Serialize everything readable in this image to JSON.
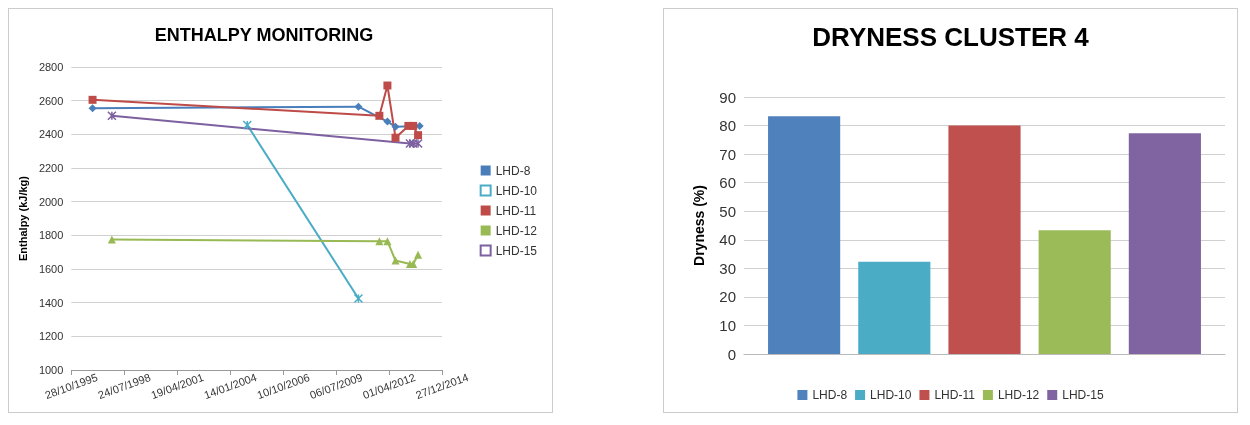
{
  "chart_data": [
    {
      "type": "line",
      "title": "ENTHALPY MONITORING",
      "ylabel": "Enthalpy (kJ/kg)",
      "xlim": [
        "1995-10-28",
        "2014-12-27"
      ],
      "xticks": [
        {
          "value": "1995-10-28",
          "label": "28/10/1995"
        },
        {
          "value": "1998-07-24",
          "label": "24/07/1998"
        },
        {
          "value": "2001-04-19",
          "label": "19/04/2001"
        },
        {
          "value": "2004-01-14",
          "label": "14/01/2004"
        },
        {
          "value": "2006-10-10",
          "label": "10/10/2006"
        },
        {
          "value": "2009-07-06",
          "label": "06/07/2009"
        },
        {
          "value": "2012-04-01",
          "label": "01/04/2012"
        },
        {
          "value": "2014-12-27",
          "label": "27/12/2014"
        }
      ],
      "ylim": [
        1000,
        2800
      ],
      "yticks": [
        1000,
        1200,
        1400,
        1600,
        1800,
        2000,
        2200,
        2400,
        2600,
        2800
      ],
      "grid": "y",
      "legend": "right",
      "line_style": "solid",
      "series": [
        {
          "name": "LHD-8",
          "color": "#4a7ebb",
          "marker": "diamond",
          "x": [
            "1996-12",
            "2010-09",
            "2012-03",
            "2012-08",
            "2013-11"
          ],
          "values": [
            2555,
            2564,
            2476,
            2445,
            2450
          ]
        },
        {
          "name": "LHD-10",
          "color": "#4bacc6",
          "marker": "cross",
          "x": [
            "2004-12",
            "2010-09"
          ],
          "values": [
            2455,
            1425
          ]
        },
        {
          "name": "LHD-11",
          "color": "#be4b48",
          "marker": "square",
          "x": [
            "1996-12",
            "2011-10",
            "2012-03",
            "2012-08",
            "2013-04",
            "2013-07",
            "2013-10"
          ],
          "values": [
            2605,
            2510,
            2690,
            2380,
            2450,
            2450,
            2395
          ]
        },
        {
          "name": "LHD-12",
          "color": "#98b954",
          "marker": "triangle",
          "x": [
            "1997-12",
            "2011-10",
            "2012-03",
            "2012-08",
            "2013-05",
            "2013-07",
            "2013-10"
          ],
          "values": [
            1775,
            1765,
            1765,
            1650,
            1630,
            1630,
            1685
          ]
        },
        {
          "name": "LHD-15",
          "color": "#7d60a0",
          "marker": "cross",
          "x": [
            "1997-12",
            "2013-05",
            "2013-07",
            "2013-10"
          ],
          "values": [
            2510,
            2345,
            2345,
            2345
          ]
        }
      ]
    },
    {
      "type": "bar",
      "title": "DRYNESS CLUSTER 4",
      "ylabel": "Dryness (%)",
      "categories": [
        null
      ],
      "ylim": [
        0,
        90
      ],
      "yticks": [
        0,
        10,
        20,
        30,
        40,
        50,
        60,
        70,
        80,
        90
      ],
      "grid": "y",
      "legend": "bottom",
      "series": [
        {
          "name": "LHD-8",
          "color": "#4f81bd",
          "values": [
            83.3
          ]
        },
        {
          "name": "LHD-10",
          "color": "#4bacc6",
          "values": [
            32.3
          ]
        },
        {
          "name": "LHD-11",
          "color": "#c0504d",
          "values": [
            80
          ]
        },
        {
          "name": "LHD-12",
          "color": "#9bbb59",
          "values": [
            43.3
          ]
        },
        {
          "name": "LHD-15",
          "color": "#8064a2",
          "values": [
            77.3
          ]
        }
      ]
    }
  ]
}
